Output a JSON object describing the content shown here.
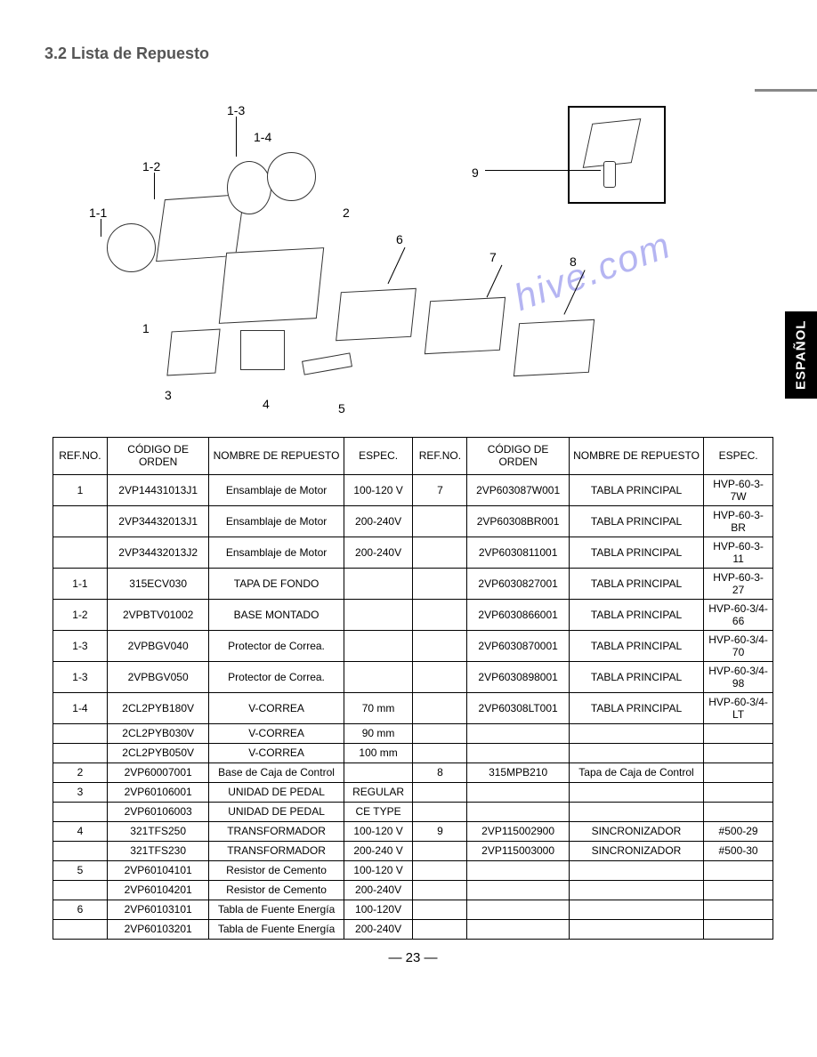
{
  "section_title": "3.2 Lista de Repuesto",
  "side_tab": "ESPAÑOL",
  "watermark": "hive.com",
  "page_number": "23",
  "diagram_labels": {
    "l1_1": "1-1",
    "l1_2": "1-2",
    "l1_3": "1-3",
    "l1_4": "1-4",
    "l1": "1",
    "l2": "2",
    "l3": "3",
    "l4": "4",
    "l5": "5",
    "l6": "6",
    "l7": "7",
    "l8": "8",
    "l9": "9"
  },
  "headers": {
    "ref": "REF.NO.",
    "code": "CÓDIGO DE ORDEN",
    "name": "NOMBRE DE REPUESTO",
    "spec": "ESPEC."
  },
  "rows_left": [
    {
      "ref": "1",
      "code": "2VP14431013J1",
      "name": "Ensamblaje de Motor",
      "spec": "100-120 V"
    },
    {
      "ref": "",
      "code": "2VP34432013J1",
      "name": "Ensamblaje de Motor",
      "spec": "200-240V"
    },
    {
      "ref": "",
      "code": "2VP34432013J2",
      "name": "Ensamblaje de Motor",
      "spec": "200-240V"
    },
    {
      "ref": "1-1",
      "code": "315ECV030",
      "name": "TAPA DE FONDO",
      "spec": ""
    },
    {
      "ref": "1-2",
      "code": "2VPBTV01002",
      "name": "BASE MONTADO",
      "spec": ""
    },
    {
      "ref": "1-3",
      "code": "2VPBGV040",
      "name": "Protector de Correa.",
      "spec": ""
    },
    {
      "ref": "1-3",
      "code": "2VPBGV050",
      "name": "Protector de Correa.",
      "spec": ""
    },
    {
      "ref": "1-4",
      "code": "2CL2PYB180V",
      "name": "V-CORREA",
      "spec": "70 mm"
    },
    {
      "ref": "",
      "code": "2CL2PYB030V",
      "name": "V-CORREA",
      "spec": "90 mm"
    },
    {
      "ref": "",
      "code": "2CL2PYB050V",
      "name": "V-CORREA",
      "spec": "100 mm"
    },
    {
      "ref": "2",
      "code": "2VP60007001",
      "name": "Base de Caja de Control",
      "spec": ""
    },
    {
      "ref": "3",
      "code": "2VP60106001",
      "name": "UNIDAD DE PEDAL",
      "spec": "REGULAR"
    },
    {
      "ref": "",
      "code": "2VP60106003",
      "name": "UNIDAD DE PEDAL",
      "spec": "CE TYPE"
    },
    {
      "ref": "4",
      "code": "321TFS250",
      "name": "TRANSFORMADOR",
      "spec": "100-120 V"
    },
    {
      "ref": "",
      "code": "321TFS230",
      "name": "TRANSFORMADOR",
      "spec": "200-240 V"
    },
    {
      "ref": "5",
      "code": "2VP60104101",
      "name": "Resistor de Cemento",
      "spec": "100-120 V"
    },
    {
      "ref": "",
      "code": "2VP60104201",
      "name": "Resistor de Cemento",
      "spec": "200-240V"
    },
    {
      "ref": "6",
      "code": "2VP60103101",
      "name": "Tabla de Fuente Energía",
      "spec": "100-120V"
    },
    {
      "ref": "",
      "code": "2VP60103201",
      "name": "Tabla de Fuente Energía",
      "spec": "200-240V"
    }
  ],
  "rows_right": [
    {
      "ref": "7",
      "code": "2VP603087W001",
      "name": "TABLA PRINCIPAL",
      "spec": "HVP-60-3-7W"
    },
    {
      "ref": "",
      "code": "2VP60308BR001",
      "name": "TABLA PRINCIPAL",
      "spec": "HVP-60-3-BR"
    },
    {
      "ref": "",
      "code": "2VP6030811001",
      "name": "TABLA PRINCIPAL",
      "spec": "HVP-60-3-11"
    },
    {
      "ref": "",
      "code": "2VP6030827001",
      "name": "TABLA PRINCIPAL",
      "spec": "HVP-60-3-27"
    },
    {
      "ref": "",
      "code": "2VP6030866001",
      "name": "TABLA PRINCIPAL",
      "spec": "HVP-60-3/4-66"
    },
    {
      "ref": "",
      "code": "2VP6030870001",
      "name": "TABLA PRINCIPAL",
      "spec": "HVP-60-3/4-70"
    },
    {
      "ref": "",
      "code": "2VP6030898001",
      "name": "TABLA PRINCIPAL",
      "spec": "HVP-60-3/4-98"
    },
    {
      "ref": "",
      "code": "2VP60308LT001",
      "name": "TABLA PRINCIPAL",
      "spec": "HVP-60-3/4-LT"
    },
    {
      "ref": "",
      "code": "",
      "name": "",
      "spec": ""
    },
    {
      "ref": "",
      "code": "",
      "name": "",
      "spec": ""
    },
    {
      "ref": "8",
      "code": "315MPB210",
      "name": "Tapa de Caja de Control",
      "spec": ""
    },
    {
      "ref": "",
      "code": "",
      "name": "",
      "spec": ""
    },
    {
      "ref": "",
      "code": "",
      "name": "",
      "spec": ""
    },
    {
      "ref": "9",
      "code": "2VP115002900",
      "name": "SINCRONIZADOR",
      "spec": "#500-29"
    },
    {
      "ref": "",
      "code": "2VP115003000",
      "name": "SINCRONIZADOR",
      "spec": "#500-30"
    },
    {
      "ref": "",
      "code": "",
      "name": "",
      "spec": ""
    },
    {
      "ref": "",
      "code": "",
      "name": "",
      "spec": ""
    },
    {
      "ref": "",
      "code": "",
      "name": "",
      "spec": ""
    },
    {
      "ref": "",
      "code": "",
      "name": "",
      "spec": ""
    }
  ]
}
